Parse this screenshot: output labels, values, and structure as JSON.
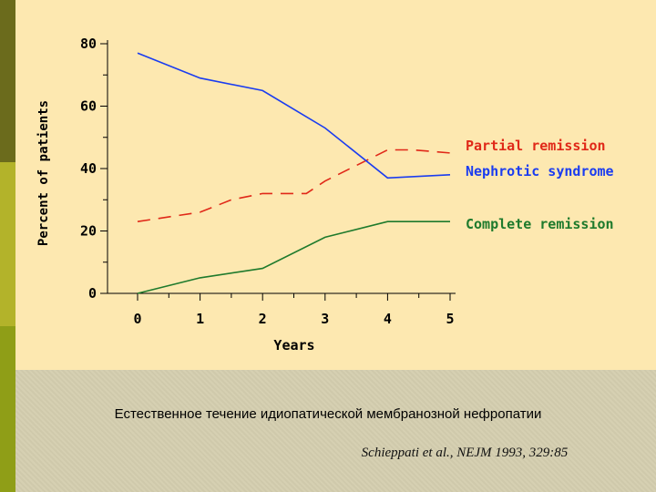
{
  "chart_data": {
    "type": "line",
    "title": "",
    "xlabel": "Years",
    "ylabel": "Percent of patients",
    "x": [
      0,
      1,
      2,
      3,
      4,
      5
    ],
    "xlim": [
      0,
      5
    ],
    "ylim": [
      0,
      80
    ],
    "yticks": [
      0,
      20,
      40,
      60,
      80
    ],
    "xticks": [
      0,
      1,
      2,
      3,
      4,
      5
    ],
    "grid": false,
    "legend": "right",
    "series": [
      {
        "name": "Partial remission",
        "color": "#e02818",
        "dash": true,
        "points": [
          [
            0,
            23
          ],
          [
            1,
            26
          ],
          [
            1.5,
            30
          ],
          [
            2,
            32
          ],
          [
            2.7,
            32
          ],
          [
            3,
            36
          ],
          [
            4,
            46
          ],
          [
            4.4,
            46
          ],
          [
            5,
            45
          ]
        ]
      },
      {
        "name": "Nephrotic syndrome",
        "color": "#1a3cf0",
        "dash": false,
        "points": [
          [
            0,
            77
          ],
          [
            1,
            69
          ],
          [
            2,
            65
          ],
          [
            3,
            53
          ],
          [
            4,
            37
          ],
          [
            5,
            38
          ]
        ]
      },
      {
        "name": "Complete remission",
        "color": "#1e7a2c",
        "dash": false,
        "points": [
          [
            0,
            0
          ],
          [
            1,
            5
          ],
          [
            2,
            8
          ],
          [
            3,
            18
          ],
          [
            4,
            23
          ],
          [
            5,
            23
          ]
        ]
      }
    ]
  },
  "caption": "Естественное течение идиопатической мембранозной нефропатии",
  "citation": "Schieppati et al., NEJM 1993, 329:85"
}
